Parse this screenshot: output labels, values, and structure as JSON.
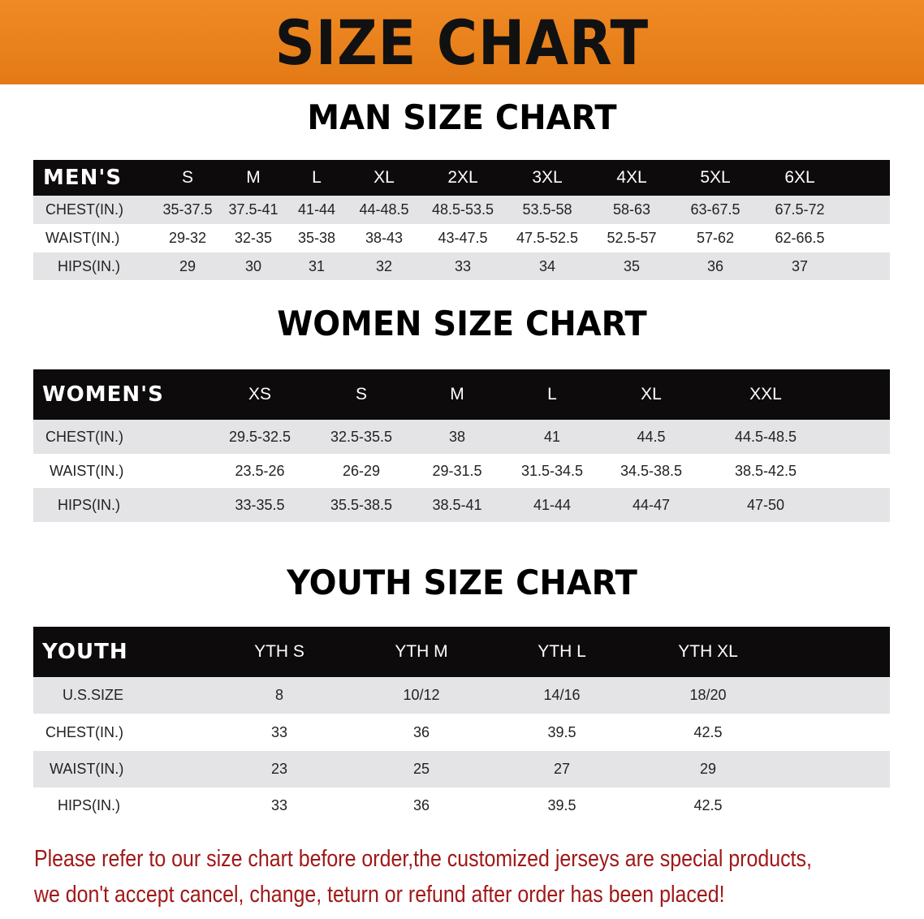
{
  "banner_title": "SIZE CHART",
  "colors": {
    "banner": "#e8821e",
    "header_row": "#0d0b0b",
    "stripe": "#e4e4e6",
    "note": "#a01818"
  },
  "men": {
    "title": "MAN SIZE CHART",
    "header": [
      "MEN'S",
      "S",
      "M",
      "L",
      "XL",
      "2XL",
      "3XL",
      "4XL",
      "5XL",
      "6XL"
    ],
    "rows": [
      [
        "CHEST(IN.)",
        "35-37.5",
        "37.5-41",
        "41-44",
        "44-48.5",
        "48.5-53.5",
        "53.5-58",
        "58-63",
        "63-67.5",
        "67.5-72"
      ],
      [
        "WAIST(IN.)",
        "29-32",
        "32-35",
        "35-38",
        "38-43",
        "43-47.5",
        "47.5-52.5",
        "52.5-57",
        "57-62",
        "62-66.5"
      ],
      [
        "HIPS(IN.)",
        "29",
        "30",
        "31",
        "32",
        "33",
        "34",
        "35",
        "36",
        "37"
      ]
    ]
  },
  "women": {
    "title": "WOMEN SIZE CHART",
    "header": [
      "WOMEN'S",
      "XS",
      "S",
      "M",
      "L",
      "XL",
      "XXL"
    ],
    "rows": [
      [
        "CHEST(IN.)",
        "29.5-32.5",
        "32.5-35.5",
        "38",
        "41",
        "44.5",
        "44.5-48.5"
      ],
      [
        "WAIST(IN.)",
        "23.5-26",
        "26-29",
        "29-31.5",
        "31.5-34.5",
        "34.5-38.5",
        "38.5-42.5"
      ],
      [
        "HIPS(IN.)",
        "33-35.5",
        "35.5-38.5",
        "38.5-41",
        "41-44",
        "44-47",
        "47-50"
      ]
    ]
  },
  "youth": {
    "title": "YOUTH SIZE CHART",
    "header": [
      "YOUTH",
      "YTH S",
      "YTH M",
      "YTH L",
      "YTH XL"
    ],
    "rows": [
      [
        "U.S.SIZE",
        "8",
        "10/12",
        "14/16",
        "18/20"
      ],
      [
        "CHEST(IN.)",
        "33",
        "36",
        "39.5",
        "42.5"
      ],
      [
        "WAIST(IN.)",
        "23",
        "25",
        "27",
        "29"
      ],
      [
        "HIPS(IN.)",
        "33",
        "36",
        "39.5",
        "42.5"
      ]
    ]
  },
  "note": {
    "line1": "Please refer to our size chart before order,the customized jerseys are special products,",
    "line2": "we don't accept cancel, change, teturn or refund after order has been placed!"
  }
}
